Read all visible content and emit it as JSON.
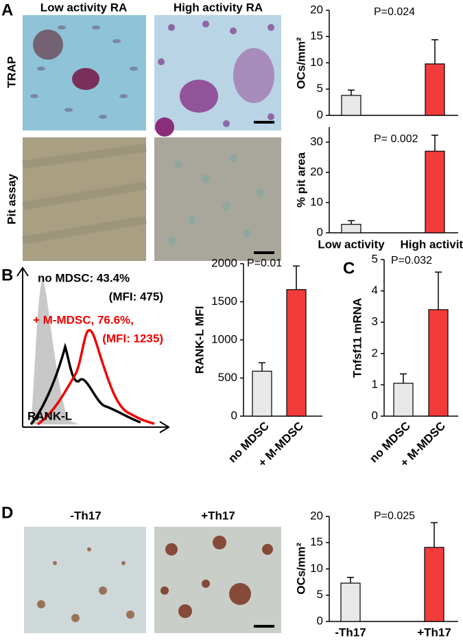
{
  "panel_labels": [
    "A",
    "B",
    "C",
    "D"
  ],
  "panel_a": {
    "column_titles": [
      "Low activity RA",
      "High activity RA"
    ],
    "row_labels": [
      "TRAP",
      "Pit assay"
    ]
  },
  "panel_b": {
    "legend": [
      "no MDSC: 43.4%",
      "(MFI: 475)",
      "+ M-MDSC, 76.6%,",
      "(MFI: 1235)"
    ],
    "x_label": "RANK-L"
  },
  "panel_d": {
    "column_titles": [
      "-Th17",
      "+Th17"
    ]
  },
  "chart_data": [
    {
      "type": "bar",
      "y_label": "OCs/mm²",
      "annotation": "P=0.024",
      "categories": [
        null,
        null
      ],
      "values": [
        3.8,
        9.8
      ],
      "errors": [
        1.0,
        4.6
      ],
      "colors": [
        "#e8e8e8",
        "#f23b3b"
      ],
      "ylim": [
        0,
        20
      ],
      "yticks": [
        0,
        5,
        10,
        15,
        20
      ]
    },
    {
      "type": "bar",
      "y_label": "% pit area",
      "annotation": "P= 0.002",
      "categories": [
        "Low activity",
        "High activity"
      ],
      "values": [
        2.8,
        27
      ],
      "errors": [
        1.2,
        5.3
      ],
      "colors": [
        "#e8e8e8",
        "#f23b3b"
      ],
      "ylim": [
        0,
        35
      ],
      "yticks": [
        0,
        10,
        20,
        30
      ]
    },
    {
      "type": "bar",
      "y_label": "RANK-L MFI",
      "annotation": "P=0.01",
      "categories": [
        "no MDSC",
        "+ M-MDSC"
      ],
      "values": [
        590,
        1660
      ],
      "errors": [
        110,
        310
      ],
      "colors": [
        "#e8e8e8",
        "#f23b3b"
      ],
      "ylim": [
        0,
        2000
      ],
      "yticks": [
        0,
        500,
        1000,
        1500,
        2000
      ]
    },
    {
      "type": "bar",
      "y_label": "Tnfsf11 mRNA",
      "annotation": "P=0.032",
      "categories": [
        "no MDSC",
        "+ M-MDSC"
      ],
      "values": [
        1.05,
        3.4
      ],
      "errors": [
        0.3,
        1.2
      ],
      "colors": [
        "#e8e8e8",
        "#f23b3b"
      ],
      "ylim": [
        0,
        5
      ],
      "yticks": [
        0,
        1,
        2,
        3,
        4,
        5
      ]
    },
    {
      "type": "bar",
      "y_label": "OCs/mm²",
      "annotation": "P=0.025",
      "categories": [
        "-Th17",
        "+Th17"
      ],
      "values": [
        7.3,
        14.1
      ],
      "errors": [
        1.1,
        4.7
      ],
      "colors": [
        "#e8e8e8",
        "#f23b3b"
      ],
      "ylim": [
        0,
        20
      ],
      "yticks": [
        0,
        5,
        10,
        15,
        20
      ]
    }
  ]
}
